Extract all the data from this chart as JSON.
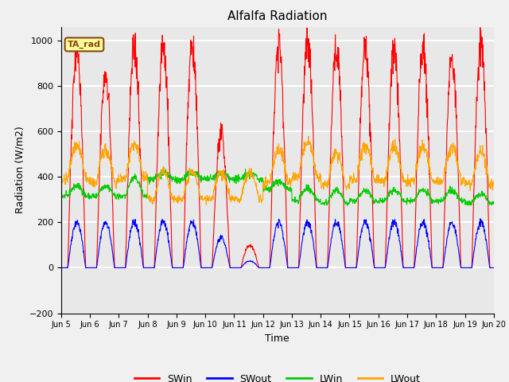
{
  "title": "Alfalfa Radiation",
  "xlabel": "Time",
  "ylabel": "Radiation (W/m2)",
  "ylim": [
    -200,
    1060
  ],
  "yticks": [
    -200,
    0,
    200,
    400,
    600,
    800,
    1000
  ],
  "annotation_text": "TA_rad",
  "annotation_color": "#8B4513",
  "annotation_bg": "#FFFF99",
  "annotation_border": "#8B4513",
  "colors": {
    "SWin": "#FF0000",
    "SWout": "#0000FF",
    "LWin": "#00CC00",
    "LWout": "#FFA500"
  },
  "fig_facecolor": "#F0F0F0",
  "ax_facecolor": "#E8E8E8",
  "grid_color": "#FFFFFF",
  "n_days": 15,
  "start_day": 5,
  "dt_hours": 0.25,
  "day_peak_SWin": [
    960,
    850,
    970,
    960,
    970,
    580,
    100,
    980,
    1000,
    960,
    960,
    950,
    970,
    930,
    980
  ],
  "day_peak_SWout": [
    200,
    200,
    200,
    200,
    200,
    130,
    30,
    200,
    200,
    200,
    200,
    200,
    200,
    200,
    200
  ],
  "day_peak_LWout": [
    540,
    520,
    545,
    420,
    420,
    420,
    420,
    520,
    555,
    500,
    540,
    530,
    530,
    530,
    510
  ],
  "day_base_LWin": [
    315,
    315,
    315,
    390,
    390,
    390,
    390,
    345,
    295,
    285,
    295,
    295,
    295,
    295,
    285
  ],
  "day_peak_LWin": [
    360,
    360,
    395,
    415,
    415,
    415,
    415,
    380,
    350,
    340,
    340,
    340,
    340,
    340,
    325
  ]
}
